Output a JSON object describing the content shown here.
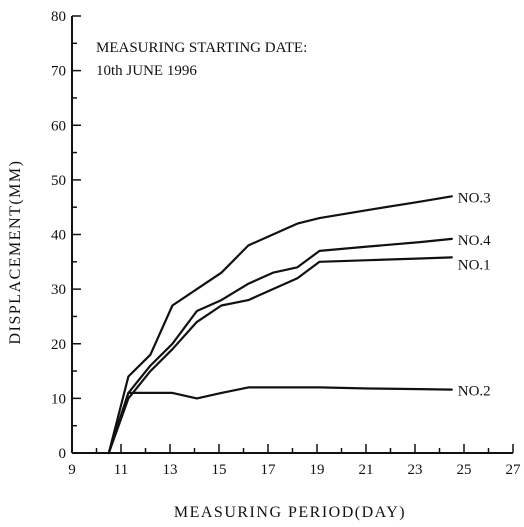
{
  "chart_data": {
    "type": "line",
    "title": "",
    "annotation": [
      "MEASURING STARTING DATE:",
      "10th JUNE 1996"
    ],
    "xlabel": "MEASURING PERIOD(DAY)",
    "ylabel": "DISPLACEMENT(MM)",
    "xlim": [
      9,
      27
    ],
    "ylim": [
      0,
      80
    ],
    "x_ticks": [
      9,
      11,
      13,
      15,
      17,
      19,
      21,
      23,
      25,
      27
    ],
    "y_ticks": [
      0,
      10,
      20,
      30,
      40,
      50,
      60,
      70,
      80
    ],
    "grid": false,
    "legend": "labels at line ends",
    "series": [
      {
        "name": "NO.3",
        "x": [
          10.5,
          11.3,
          12.2,
          13.1,
          14.1,
          15.1,
          16.2,
          17.2,
          18.2,
          19.1,
          21.1,
          23.2,
          24.5
        ],
        "values": [
          0,
          14,
          18,
          27,
          30,
          33,
          38,
          40,
          42,
          43,
          44.5,
          46,
          47
        ]
      },
      {
        "name": "NO.4",
        "x": [
          10.5,
          11.3,
          12.2,
          13.1,
          14.1,
          15.1,
          16.2,
          17.2,
          18.2,
          19.1,
          21.1,
          23.2,
          24.5
        ],
        "values": [
          0,
          11,
          16,
          20,
          26,
          28,
          31,
          33,
          34,
          37,
          37.8,
          38.6,
          39.2
        ]
      },
      {
        "name": "NO.1",
        "x": [
          10.5,
          11.3,
          12.2,
          13.1,
          14.1,
          15.1,
          16.2,
          17.2,
          18.2,
          19.1,
          21.1,
          23.2,
          24.5
        ],
        "values": [
          0,
          10,
          15,
          19,
          24,
          27,
          28,
          30,
          32,
          35,
          35.3,
          35.6,
          35.8
        ]
      },
      {
        "name": "NO.2",
        "x": [
          10.5,
          11.3,
          12.2,
          13.1,
          14.1,
          15.1,
          16.2,
          17.2,
          18.2,
          19.1,
          21.1,
          23.2,
          24.5
        ],
        "values": [
          0,
          11,
          11,
          11,
          10,
          11,
          12,
          12,
          12,
          12,
          11.8,
          11.7,
          11.6
        ]
      }
    ]
  }
}
